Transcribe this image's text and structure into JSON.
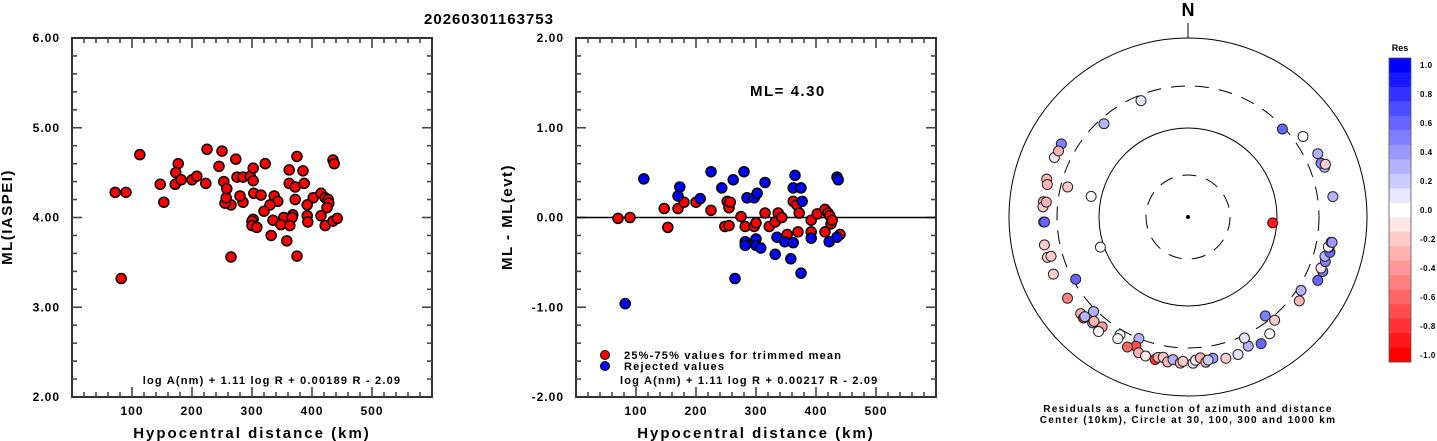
{
  "chart_data": [
    {
      "type": "scatter",
      "title": "20260301163753",
      "xlabel": "Hypocentral distance (km)",
      "ylabel": "ML(IASPEI)",
      "xlim": [
        0,
        600
      ],
      "ylim": [
        2.0,
        6.0
      ],
      "xticks": [
        "100",
        "200",
        "300",
        "400",
        "500"
      ],
      "xtick_values": [
        100,
        200,
        300,
        400,
        500
      ],
      "yticks": [
        "2.00",
        "3.00",
        "4.00",
        "5.00",
        "6.00"
      ],
      "ytick_values": [
        2,
        3,
        4,
        5,
        6
      ],
      "annotation": "log A(nm) + 1.11 log R + 0.00189 R - 2.09",
      "marker_color": "#ff0000",
      "points": [
        [
          72,
          4.28
        ],
        [
          90,
          4.28
        ],
        [
          113,
          4.7
        ],
        [
          82,
          3.32
        ],
        [
          147,
          4.37
        ],
        [
          153,
          4.17
        ],
        [
          172,
          4.37
        ],
        [
          177,
          4.6
        ],
        [
          173,
          4.5
        ],
        [
          182,
          4.42
        ],
        [
          200,
          4.42
        ],
        [
          208,
          4.46
        ],
        [
          225,
          4.76
        ],
        [
          223,
          4.38
        ],
        [
          245,
          4.57
        ],
        [
          273,
          4.65
        ],
        [
          250,
          4.74
        ],
        [
          265,
          4.14
        ],
        [
          255,
          4.16
        ],
        [
          257,
          4.22
        ],
        [
          253,
          4.4
        ],
        [
          258,
          4.32
        ],
        [
          275,
          4.45
        ],
        [
          285,
          4.17
        ],
        [
          280,
          4.24
        ],
        [
          285,
          4.45
        ],
        [
          297,
          4.46
        ],
        [
          303,
          4.27
        ],
        [
          302,
          4.55
        ],
        [
          302,
          3.98
        ],
        [
          322,
          4.6
        ],
        [
          375,
          4.68
        ],
        [
          435,
          4.64
        ],
        [
          437,
          4.6
        ],
        [
          362,
          4.53
        ],
        [
          385,
          4.52
        ],
        [
          302,
          4.41
        ],
        [
          362,
          4.38
        ],
        [
          372,
          4.34
        ],
        [
          387,
          4.38
        ],
        [
          315,
          4.25
        ],
        [
          337,
          4.24
        ],
        [
          343,
          4.18
        ],
        [
          330,
          4.14
        ],
        [
          320,
          4.07
        ],
        [
          372,
          4.2
        ],
        [
          402,
          4.22
        ],
        [
          415,
          4.27
        ],
        [
          422,
          4.22
        ],
        [
          427,
          4.2
        ],
        [
          428,
          4.16
        ],
        [
          425,
          4.11
        ],
        [
          392,
          4.14
        ],
        [
          353,
          4.0
        ],
        [
          368,
          4.03
        ],
        [
          367,
          4.0
        ],
        [
          335,
          3.97
        ],
        [
          348,
          3.92
        ],
        [
          363,
          3.91
        ],
        [
          392,
          4.02
        ],
        [
          393,
          3.95
        ],
        [
          415,
          4.02
        ],
        [
          422,
          3.91
        ],
        [
          435,
          3.96
        ],
        [
          442,
          3.99
        ],
        [
          300,
          3.96
        ],
        [
          300,
          3.91
        ],
        [
          308,
          3.89
        ],
        [
          332,
          3.8
        ],
        [
          358,
          3.74
        ],
        [
          375,
          3.57
        ],
        [
          265,
          3.56
        ]
      ]
    },
    {
      "type": "scatter",
      "xlabel": "Hypocentral distance (km)",
      "ylabel": "ML - ML(evt)",
      "xlim": [
        0,
        600
      ],
      "ylim": [
        -2.0,
        2.0
      ],
      "xticks": [
        "100",
        "200",
        "300",
        "400",
        "500"
      ],
      "xtick_values": [
        100,
        200,
        300,
        400,
        500
      ],
      "yticks": [
        "-2.00",
        "-1.00",
        "0.00",
        "1.00",
        "2.00"
      ],
      "ytick_values": [
        -2,
        -1,
        0,
        1,
        2
      ],
      "hline": 0,
      "annotation_ml": "ML= 4.30",
      "annotation": "log A(nm) + 1.11 log R + 0.00217 R - 2.09",
      "legend": [
        {
          "label": "25%-75% values for trimmed mean",
          "color": "#ff0000"
        },
        {
          "label": "Rejected values",
          "color": "#0000ff"
        }
      ],
      "legend_position": "bottom-left",
      "series": [
        {
          "name": "25%-75% values for trimmed mean",
          "color": "#ff0000",
          "points": [
            [
              70,
              -0.01
            ],
            [
              90,
              0.0
            ],
            [
              147,
              0.1
            ],
            [
              153,
              -0.11
            ],
            [
              170,
              0.1
            ],
            [
              180,
              0.17
            ],
            [
              200,
              0.17
            ],
            [
              225,
              0.08
            ],
            [
              252,
              0.18
            ],
            [
              255,
              0.11
            ],
            [
              257,
              0.17
            ],
            [
              248,
              -0.1
            ],
            [
              255,
              -0.09
            ],
            [
              275,
              0.01
            ],
            [
              282,
              -0.1
            ],
            [
              297,
              -0.1
            ],
            [
              300,
              -0.06
            ],
            [
              315,
              0.05
            ],
            [
              322,
              -0.1
            ],
            [
              332,
              -0.05
            ],
            [
              337,
              0.05
            ],
            [
              343,
              0.0
            ],
            [
              352,
              -0.19
            ],
            [
              362,
              0.18
            ],
            [
              368,
              0.14
            ],
            [
              372,
              0.05
            ],
            [
              370,
              -0.16
            ],
            [
              392,
              -0.03
            ],
            [
              392,
              -0.16
            ],
            [
              402,
              0.04
            ],
            [
              415,
              0.09
            ],
            [
              420,
              0.05
            ],
            [
              423,
              0.02
            ],
            [
              425,
              -0.07
            ],
            [
              427,
              -0.03
            ],
            [
              415,
              -0.16
            ],
            [
              440,
              -0.19
            ]
          ]
        },
        {
          "name": "Rejected values",
          "color": "#0000ff",
          "points": [
            [
              82,
              -0.96
            ],
            [
              113,
              0.43
            ],
            [
              170,
              0.24
            ],
            [
              173,
              0.34
            ],
            [
              207,
              0.21
            ],
            [
              225,
              0.51
            ],
            [
              243,
              0.33
            ],
            [
              262,
              0.42
            ],
            [
              280,
              0.51
            ],
            [
              285,
              0.22
            ],
            [
              297,
              0.22
            ],
            [
              302,
              0.27
            ],
            [
              315,
              0.39
            ],
            [
              362,
              0.33
            ],
            [
              365,
              0.47
            ],
            [
              375,
              0.33
            ],
            [
              377,
              0.18
            ],
            [
              435,
              0.45
            ],
            [
              437,
              0.42
            ],
            [
              282,
              -0.27
            ],
            [
              282,
              -0.31
            ],
            [
              300,
              -0.24
            ],
            [
              300,
              -0.31
            ],
            [
              308,
              -0.34
            ],
            [
              332,
              -0.41
            ],
            [
              335,
              -0.22
            ],
            [
              348,
              -0.27
            ],
            [
              358,
              -0.46
            ],
            [
              362,
              -0.28
            ],
            [
              375,
              -0.62
            ],
            [
              392,
              -0.23
            ],
            [
              422,
              -0.27
            ],
            [
              435,
              -0.22
            ],
            [
              265,
              -0.68
            ]
          ]
        }
      ]
    },
    {
      "type": "scatter",
      "title": "N",
      "caption_line1": "Residuals as a function of azimuth and distance",
      "caption_line2": "Center (10km), Circle at 30, 100, 300 and 1000 km",
      "rings_km": [
        10,
        30,
        100,
        300,
        1000
      ],
      "colorbar": {
        "title": "Res",
        "labels": [
          "1.0",
          "0.8",
          "0.6",
          "0.4",
          "0.2",
          "0.0",
          "-0.2",
          "-0.4",
          "-0.6",
          "-0.8",
          "-1.0"
        ],
        "min": -1.0,
        "max": 1.0,
        "low_color": "#ff0000",
        "mid_color": "#ffffff",
        "high_color": "#0000ff"
      },
      "stations": [
        {
          "az": 338,
          "dist": 260,
          "res": 0.05
        },
        {
          "az": 47,
          "dist": 285,
          "res": 0.55
        },
        {
          "az": 294,
          "dist": 440,
          "res": 0.1
        },
        {
          "az": 300,
          "dist": 440,
          "res": 0.5
        },
        {
          "az": 297,
          "dist": 430,
          "res": -0.3
        },
        {
          "az": 285,
          "dist": 440,
          "res": -0.3
        },
        {
          "az": 283,
          "dist": 420,
          "res": -0.3
        },
        {
          "az": 276,
          "dist": 430,
          "res": -0.35
        },
        {
          "az": 274,
          "dist": 430,
          "res": -0.25
        },
        {
          "az": 276,
          "dist": 400,
          "res": -0.35
        },
        {
          "az": 268,
          "dist": 420,
          "res": 0.0
        },
        {
          "az": 268,
          "dist": 410,
          "res": 0.55
        },
        {
          "az": 259,
          "dist": 440,
          "res": -0.25
        },
        {
          "az": 254,
          "dist": 440,
          "res": -0.25
        },
        {
          "az": 254,
          "dist": 400,
          "res": -0.2
        },
        {
          "az": 318,
          "dist": 260,
          "res": 0.3
        },
        {
          "az": 284,
          "dist": 250,
          "res": -0.25
        },
        {
          "az": 282,
          "dist": 130,
          "res": 0.0
        },
        {
          "az": 247,
          "dist": 440,
          "res": -0.2
        },
        {
          "az": 241,
          "dist": 280,
          "res": 0.55
        },
        {
          "az": 251,
          "dist": 110,
          "res": 0.0
        },
        {
          "az": 236,
          "dist": 430,
          "res": -0.5
        },
        {
          "az": 228,
          "dist": 420,
          "res": -0.35
        },
        {
          "az": 226,
          "dist": 430,
          "res": -0.95
        },
        {
          "az": 222,
          "dist": 400,
          "res": 0.3
        },
        {
          "az": 226,
          "dist": 410,
          "res": 0.3
        },
        {
          "az": 222,
          "dist": 380,
          "res": -0.3
        },
        {
          "az": 218,
          "dist": 370,
          "res": -0.4
        },
        {
          "az": 225,
          "dist": 320,
          "res": 0.3
        },
        {
          "az": 218,
          "dist": 430,
          "res": 0.0
        },
        {
          "az": 210,
          "dist": 340,
          "res": 0.0
        },
        {
          "az": 202,
          "dist": 300,
          "res": 0.25
        },
        {
          "az": 210,
          "dist": 380,
          "res": 0.0
        },
        {
          "az": 202,
          "dist": 370,
          "res": -0.7
        },
        {
          "az": 205,
          "dist": 410,
          "res": -0.6
        },
        {
          "az": 200,
          "dist": 420,
          "res": -0.35
        },
        {
          "az": 197,
          "dist": 430,
          "res": -0.15
        },
        {
          "az": 193,
          "dist": 440,
          "res": -0.8
        },
        {
          "az": 192,
          "dist": 410,
          "res": -0.3
        },
        {
          "az": 190,
          "dist": 400,
          "res": -0.25
        },
        {
          "az": 188,
          "dist": 440,
          "res": -0.3
        },
        {
          "az": 186,
          "dist": 410,
          "res": 0.25
        },
        {
          "az": 183,
          "dist": 440,
          "res": -0.35
        },
        {
          "az": 182,
          "dist": 420,
          "res": -0.2
        },
        {
          "az": 178,
          "dist": 440,
          "res": 0.1
        },
        {
          "az": 177,
          "dist": 410,
          "res": -0.15
        },
        {
          "az": 175,
          "dist": 390,
          "res": -0.3
        },
        {
          "az": 173,
          "dist": 440,
          "res": -0.3
        },
        {
          "az": 170,
          "dist": 410,
          "res": 0.35
        },
        {
          "az": 172,
          "dist": 420,
          "res": 0.2
        },
        {
          "az": 165,
          "dist": 440,
          "res": -0.2
        },
        {
          "az": 160,
          "dist": 440,
          "res": 0.1
        },
        {
          "az": 155,
          "dist": 400,
          "res": 0.3
        },
        {
          "az": 150,
          "dist": 440,
          "res": 0.6
        },
        {
          "az": 145,
          "dist": 400,
          "res": 0.0
        },
        {
          "az": 155,
          "dist": 320,
          "res": 0.1
        },
        {
          "az": 140,
          "dist": 330,
          "res": -0.2
        },
        {
          "az": 127,
          "dist": 370,
          "res": -0.3
        },
        {
          "az": 142,
          "dist": 260,
          "res": 0.5
        },
        {
          "az": 123,
          "dist": 330,
          "res": 0.25
        },
        {
          "az": 116,
          "dist": 420,
          "res": 0.6
        },
        {
          "az": 112,
          "dist": 430,
          "res": 0.5
        },
        {
          "az": 111,
          "dist": 400,
          "res": -0.15
        },
        {
          "az": 108,
          "dist": 420,
          "res": 0.5
        },
        {
          "az": 106,
          "dist": 400,
          "res": 0.3
        },
        {
          "az": 104,
          "dist": 440,
          "res": 0.55
        },
        {
          "az": 102,
          "dist": 420,
          "res": 0.5
        },
        {
          "az": 102,
          "dist": 410,
          "res": 0.0
        },
        {
          "az": 100,
          "dist": 430,
          "res": 0.6
        },
        {
          "az": 100,
          "dist": 440,
          "res": 0.35
        },
        {
          "az": 94,
          "dist": 90,
          "res": -0.95
        },
        {
          "az": 82,
          "dist": 440,
          "res": 0.3
        },
        {
          "az": 70,
          "dist": 430,
          "res": 0.3
        },
        {
          "az": 68,
          "dist": 410,
          "res": 0.45
        },
        {
          "az": 69,
          "dist": 450,
          "res": -0.25
        },
        {
          "az": 64,
          "dist": 420,
          "res": 0.25
        },
        {
          "az": 55,
          "dist": 380,
          "res": 0.0
        }
      ]
    }
  ]
}
